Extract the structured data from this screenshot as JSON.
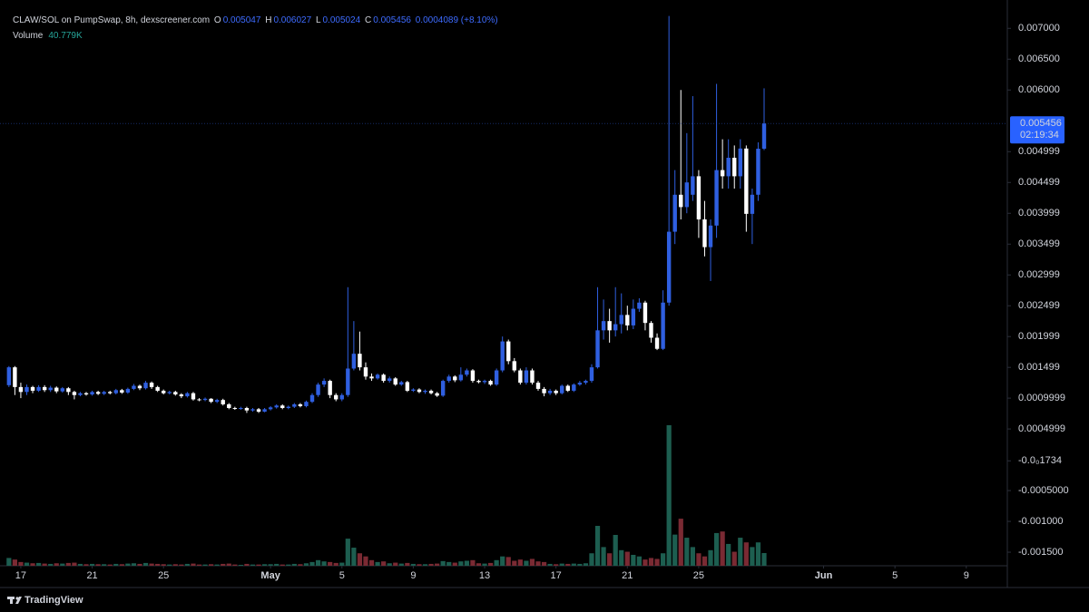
{
  "chart_data": {
    "type": "candlestick",
    "symbol": "CLAW/SOL on PumpSwap, 8h, dexscreener.com",
    "ohlc_labels": [
      "O",
      "H",
      "L",
      "C"
    ],
    "change_label": "0.0004089 (+8.10%)",
    "volume_title": "Volume",
    "volume_label": "40.779K",
    "countdown": "02:19:34",
    "brand": "TradingView",
    "up_color": "#2f5fe0",
    "down_color": "#ffffff",
    "volume_up_color": "#1d5e50",
    "volume_down_color": "#7a2a33",
    "open": [
      0.00121,
      0.0015,
      0.00118,
      0.0011,
      0.00118,
      0.00112,
      0.00118,
      0.00113,
      0.00117,
      0.00111,
      0.00116,
      0.0011,
      0.00105,
      0.00108,
      0.00106,
      0.0011,
      0.00107,
      0.0011,
      0.00108,
      0.00113,
      0.00109,
      0.00115,
      0.0012,
      0.00116,
      0.00125,
      0.00118,
      0.00112,
      0.00108,
      0.0011,
      0.00106,
      0.00103,
      0.00108,
      0.00098,
      0.00097,
      0.00099,
      0.00094,
      0.00097,
      0.0009,
      0.00084,
      0.00083,
      0.00084,
      0.0008,
      0.00082,
      0.00078,
      0.00082,
      0.00085,
      0.00088,
      0.00084,
      0.00086,
      0.0009,
      0.00087,
      0.00094,
      0.00105,
      0.00122,
      0.00128,
      0.00105,
      0.00098,
      0.00105,
      0.00148,
      0.00172,
      0.0015,
      0.00135,
      0.00132,
      0.00138,
      0.00128,
      0.00132,
      0.00122,
      0.00126,
      0.00112,
      0.00114,
      0.0011,
      0.00112,
      0.00108,
      0.00104,
      0.00128,
      0.00135,
      0.00129,
      0.00138,
      0.00145,
      0.00128,
      0.00126,
      0.00128,
      0.00122,
      0.00145,
      0.00192,
      0.0016,
      0.00145,
      0.00125,
      0.00145,
      0.00125,
      0.00115,
      0.00108,
      0.00112,
      0.00108,
      0.0012,
      0.00112,
      0.00122,
      0.00125,
      0.00128,
      0.0015,
      0.0021,
      0.00225,
      0.0021,
      0.0022,
      0.00235,
      0.00218,
      0.00245,
      0.00255,
      0.00222,
      0.00198,
      0.0018,
      0.00255,
      0.0037,
      0.0043,
      0.0041,
      0.0043,
      0.0046,
      0.0039,
      0.00345,
      0.0038,
      0.0047,
      0.0046,
      0.0049,
      0.0046,
      0.00505,
      0.00399,
      0.0043,
      0.005047
    ],
    "high": [
      0.00152,
      0.00152,
      0.00125,
      0.00122,
      0.0012,
      0.00121,
      0.00121,
      0.0012,
      0.00119,
      0.00118,
      0.00118,
      0.00112,
      0.0011,
      0.0011,
      0.00112,
      0.00112,
      0.00112,
      0.00112,
      0.00115,
      0.00115,
      0.00117,
      0.00123,
      0.00122,
      0.00128,
      0.00127,
      0.0012,
      0.00114,
      0.00112,
      0.00112,
      0.00108,
      0.0011,
      0.0011,
      0.001,
      0.00101,
      0.001,
      0.00099,
      0.00099,
      0.00092,
      0.00086,
      0.00086,
      0.00086,
      0.00084,
      0.00084,
      0.00084,
      0.00087,
      0.0009,
      0.0009,
      0.00088,
      0.00092,
      0.00092,
      0.00096,
      0.00108,
      0.00125,
      0.00132,
      0.0013,
      0.00108,
      0.00108,
      0.0028,
      0.00225,
      0.00208,
      0.00158,
      0.0014,
      0.0014,
      0.0014,
      0.00135,
      0.00134,
      0.00128,
      0.00128,
      0.00116,
      0.00116,
      0.00114,
      0.00114,
      0.0011,
      0.0013,
      0.00138,
      0.00137,
      0.0015,
      0.00148,
      0.00147,
      0.0013,
      0.0013,
      0.0013,
      0.00148,
      0.002,
      0.00195,
      0.00165,
      0.00148,
      0.0015,
      0.00148,
      0.00128,
      0.00118,
      0.00115,
      0.00114,
      0.00122,
      0.00122,
      0.00124,
      0.00128,
      0.0013,
      0.00155,
      0.0028,
      0.0026,
      0.00245,
      0.0028,
      0.0027,
      0.0025,
      0.0026,
      0.00262,
      0.00258,
      0.00225,
      0.00205,
      0.00275,
      0.0072,
      0.0047,
      0.006,
      0.0053,
      0.0059,
      0.0047,
      0.0042,
      0.0039,
      0.0061,
      0.0052,
      0.0052,
      0.0051,
      0.0052,
      0.0051,
      0.0044,
      0.00515,
      0.006027
    ],
    "low": [
      0.00118,
      0.00105,
      0.001,
      0.00105,
      0.00108,
      0.0011,
      0.0011,
      0.0011,
      0.00108,
      0.00109,
      0.00105,
      0.00098,
      0.00103,
      0.00104,
      0.00104,
      0.00105,
      0.00105,
      0.00106,
      0.00106,
      0.00107,
      0.00107,
      0.00113,
      0.00113,
      0.00114,
      0.00115,
      0.0011,
      0.00106,
      0.00106,
      0.00104,
      0.001,
      0.00101,
      0.00096,
      0.00095,
      0.00095,
      0.00092,
      0.00092,
      0.00088,
      0.00082,
      0.00081,
      0.00081,
      0.00076,
      0.00078,
      0.00076,
      0.00077,
      0.0008,
      0.00083,
      0.00082,
      0.00082,
      0.00084,
      0.00085,
      0.00085,
      0.00092,
      0.00102,
      0.00118,
      0.001,
      0.00095,
      0.00095,
      0.00102,
      0.00145,
      0.00145,
      0.0013,
      0.00128,
      0.0013,
      0.00125,
      0.00125,
      0.0012,
      0.0012,
      0.0011,
      0.0011,
      0.00108,
      0.00107,
      0.00106,
      0.00102,
      0.00102,
      0.00125,
      0.00126,
      0.00127,
      0.00135,
      0.00125,
      0.00124,
      0.00123,
      0.0012,
      0.0012,
      0.00142,
      0.00155,
      0.00142,
      0.00122,
      0.00122,
      0.00122,
      0.00112,
      0.00103,
      0.00105,
      0.00105,
      0.00106,
      0.0011,
      0.0011,
      0.0012,
      0.00122,
      0.00125,
      0.00148,
      0.00195,
      0.0019,
      0.002,
      0.00205,
      0.0021,
      0.00212,
      0.0024,
      0.0021,
      0.0019,
      0.00178,
      0.00178,
      0.0025,
      0.0035,
      0.0039,
      0.004,
      0.0042,
      0.0036,
      0.0033,
      0.0029,
      0.0036,
      0.0044,
      0.0044,
      0.0044,
      0.0044,
      0.0037,
      0.0035,
      0.0042,
      0.005024
    ],
    "close": [
      0.0015,
      0.00118,
      0.0011,
      0.00118,
      0.00112,
      0.00118,
      0.00113,
      0.00117,
      0.00111,
      0.00116,
      0.0011,
      0.00105,
      0.00108,
      0.00106,
      0.0011,
      0.00107,
      0.0011,
      0.00108,
      0.00113,
      0.00109,
      0.00115,
      0.0012,
      0.00116,
      0.00125,
      0.00118,
      0.00112,
      0.00108,
      0.0011,
      0.00106,
      0.00103,
      0.00108,
      0.00098,
      0.00097,
      0.00099,
      0.00094,
      0.00097,
      0.0009,
      0.00084,
      0.00083,
      0.00084,
      0.0008,
      0.00082,
      0.00078,
      0.00082,
      0.00085,
      0.00088,
      0.00084,
      0.00086,
      0.0009,
      0.00087,
      0.00094,
      0.00105,
      0.00122,
      0.00128,
      0.00105,
      0.00098,
      0.00105,
      0.00148,
      0.00172,
      0.0015,
      0.00135,
      0.00132,
      0.00138,
      0.00128,
      0.00132,
      0.00122,
      0.00126,
      0.00112,
      0.00114,
      0.0011,
      0.00112,
      0.00108,
      0.00104,
      0.00128,
      0.00135,
      0.00129,
      0.00138,
      0.00145,
      0.00128,
      0.00126,
      0.00128,
      0.00122,
      0.00145,
      0.00192,
      0.0016,
      0.00145,
      0.00125,
      0.00145,
      0.00125,
      0.00115,
      0.00108,
      0.00112,
      0.00108,
      0.0012,
      0.00112,
      0.00122,
      0.00125,
      0.00128,
      0.0015,
      0.0021,
      0.00225,
      0.0021,
      0.0022,
      0.00235,
      0.00218,
      0.00245,
      0.00255,
      0.00222,
      0.00198,
      0.0018,
      0.00255,
      0.0037,
      0.0043,
      0.0041,
      0.0045,
      0.0046,
      0.0039,
      0.00345,
      0.0038,
      0.0047,
      0.0046,
      0.0049,
      0.0046,
      0.00505,
      0.00399,
      0.0043,
      0.005047,
      0.005456
    ],
    "volume": [
      25000,
      20000,
      12000,
      10000,
      8000,
      9000,
      7000,
      6000,
      8000,
      7000,
      9000,
      10000,
      6000,
      5000,
      6000,
      5000,
      5000,
      4000,
      6000,
      5000,
      7000,
      8000,
      6000,
      9000,
      7000,
      6000,
      5000,
      4000,
      5000,
      4000,
      6000,
      7000,
      4000,
      4000,
      5000,
      4000,
      6000,
      7000,
      4000,
      3000,
      6000,
      4000,
      4000,
      5000,
      5000,
      6000,
      4000,
      4000,
      6000,
      5000,
      8000,
      12000,
      18000,
      14000,
      12000,
      9000,
      10000,
      87000,
      58000,
      40000,
      30000,
      18000,
      12000,
      14000,
      8000,
      10000,
      7000,
      9000,
      6000,
      5000,
      5000,
      6000,
      7000,
      15000,
      12000,
      10000,
      14000,
      16000,
      18000,
      8000,
      7000,
      9000,
      18000,
      30000,
      28000,
      16000,
      20000,
      16000,
      22000,
      14000,
      12000,
      6000,
      5000,
      7000,
      6000,
      7000,
      6000,
      8000,
      40000,
      128000,
      60000,
      40000,
      99000,
      50000,
      45000,
      35000,
      30000,
      20000,
      25000,
      22000,
      40000,
      451000,
      100000,
      151000,
      90000,
      60000,
      40000,
      30000,
      50000,
      105000,
      110000,
      70000,
      45000,
      90000,
      75000,
      60000,
      75000,
      40779
    ],
    "ylim": [
      -0.00172,
      0.00746
    ],
    "yticks": [
      {
        "value": 0.007,
        "label": "0.007000"
      },
      {
        "value": 0.0065,
        "label": "0.006500"
      },
      {
        "value": 0.006,
        "label": "0.006000"
      },
      {
        "value": 0.004999,
        "label": "0.004999"
      },
      {
        "value": 0.004499,
        "label": "0.004499"
      },
      {
        "value": 0.003999,
        "label": "0.003999"
      },
      {
        "value": 0.003499,
        "label": "0.003499"
      },
      {
        "value": 0.002999,
        "label": "0.002999"
      },
      {
        "value": 0.002499,
        "label": "0.002499"
      },
      {
        "value": 0.001999,
        "label": "0.001999"
      },
      {
        "value": 0.001499,
        "label": "0.001499"
      },
      {
        "value": 0.0009999,
        "label": "0.0009999"
      },
      {
        "value": 0.0004999,
        "label": "0.0004999"
      },
      {
        "value": -1.734e-05,
        "label": "-0.0₀1734"
      },
      {
        "value": -0.0005,
        "label": "-0.0005000"
      },
      {
        "value": -0.001,
        "label": "-0.001000"
      },
      {
        "value": -0.0015,
        "label": "-0.001500"
      }
    ],
    "xlim": [
      -1.5,
      167.9
    ],
    "xticks": [
      {
        "value": 2,
        "label": "17"
      },
      {
        "value": 14,
        "label": "21"
      },
      {
        "value": 26,
        "label": "25"
      },
      {
        "value": 44,
        "label": "May"
      },
      {
        "value": 56,
        "label": "5"
      },
      {
        "value": 68,
        "label": "9"
      },
      {
        "value": 80,
        "label": "13"
      },
      {
        "value": 92,
        "label": "17"
      },
      {
        "value": 104,
        "label": "21"
      },
      {
        "value": 116,
        "label": "25"
      },
      {
        "value": 137,
        "label": "Jun"
      },
      {
        "value": 149,
        "label": "5"
      },
      {
        "value": 161,
        "label": "9"
      }
    ]
  }
}
